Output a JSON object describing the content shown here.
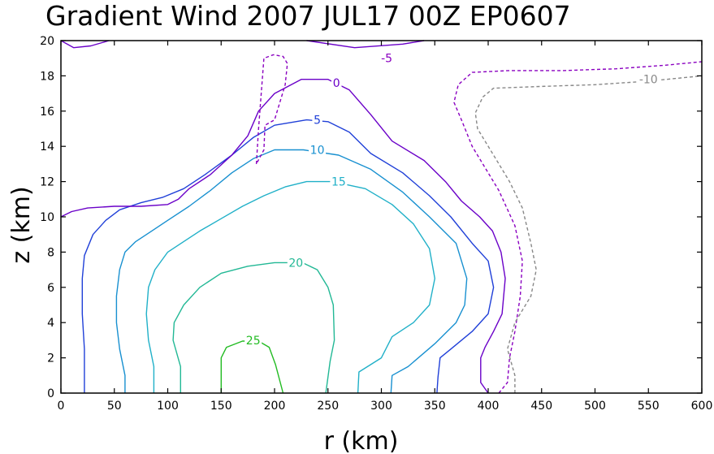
{
  "chart_data": {
    "type": "contour",
    "title": "Gradient Wind 2007 JUL17 00Z  EP0607",
    "xlabel": "r (km)",
    "ylabel": "z (km)",
    "xlim": [
      0,
      600
    ],
    "ylim": [
      0,
      20
    ],
    "xticks": [
      "0",
      "50",
      "100",
      "150",
      "200",
      "250",
      "300",
      "350",
      "400",
      "450",
      "500",
      "550",
      "600"
    ],
    "yticks": [
      "0",
      "2",
      "4",
      "6",
      "8",
      "10",
      "12",
      "14",
      "16",
      "18",
      "20"
    ],
    "contours": [
      {
        "level": 25,
        "label": "25",
        "color": "#22bb22",
        "dashed": false,
        "label_at": [
          180,
          3.0
        ],
        "lines": [
          [
            [
              150,
              0
            ],
            [
              150,
              2
            ],
            [
              155,
              2.6
            ],
            [
              170,
              2.95
            ],
            [
              185,
              2.95
            ],
            [
              195,
              2.6
            ],
            [
              201,
              1.6
            ],
            [
              208,
              0
            ]
          ]
        ]
      },
      {
        "level": 20,
        "label": "20",
        "color": "#22b895",
        "dashed": false,
        "label_at": [
          220,
          7.4
        ],
        "lines": [
          [
            [
              112,
              0
            ],
            [
              112,
              1.5
            ],
            [
              105,
              3
            ],
            [
              106,
              4
            ],
            [
              115,
              5
            ],
            [
              130,
              6
            ],
            [
              150,
              6.8
            ],
            [
              175,
              7.2
            ],
            [
              200,
              7.4
            ],
            [
              226,
              7.4
            ],
            [
              240,
              7.0
            ],
            [
              250,
              6.0
            ],
            [
              255,
              5.0
            ],
            [
              256,
              3.0
            ],
            [
              252,
              1.8
            ],
            [
              248,
              0
            ]
          ]
        ]
      },
      {
        "level": 15,
        "label": "15",
        "color": "#20b0c8",
        "dashed": false,
        "label_at": [
          260,
          12.0
        ],
        "lines": [
          [
            [
              87,
              0
            ],
            [
              87,
              1.5
            ],
            [
              82,
              3.0
            ],
            [
              80,
              4.5
            ],
            [
              82,
              6.0
            ],
            [
              88,
              7.0
            ],
            [
              100,
              8.0
            ],
            [
              115,
              8.6
            ],
            [
              130,
              9.2
            ],
            [
              150,
              9.9
            ],
            [
              170,
              10.6
            ],
            [
              190,
              11.2
            ],
            [
              210,
              11.7
            ],
            [
              230,
              12.0
            ],
            [
              254,
              12.0
            ],
            [
              285,
              11.6
            ],
            [
              310,
              10.7
            ],
            [
              330,
              9.6
            ],
            [
              345,
              8.2
            ],
            [
              350,
              6.5
            ],
            [
              345,
              5.0
            ],
            [
              330,
              4.0
            ],
            [
              310,
              3.2
            ],
            [
              300,
              2.0
            ],
            [
              279,
              1.2
            ],
            [
              278,
              0
            ]
          ]
        ]
      },
      {
        "level": 10,
        "label": "10",
        "color": "#1890d0",
        "dashed": false,
        "label_at": [
          240,
          13.8
        ],
        "lines": [
          [
            [
              60,
              0
            ],
            [
              60,
              1.0
            ],
            [
              55,
              2.5
            ],
            [
              52,
              4.0
            ],
            [
              52,
              5.5
            ],
            [
              55,
              7.0
            ],
            [
              60,
              8.0
            ],
            [
              70,
              8.6
            ],
            [
              85,
              9.2
            ],
            [
              100,
              9.8
            ],
            [
              120,
              10.6
            ],
            [
              140,
              11.5
            ],
            [
              160,
              12.5
            ],
            [
              180,
              13.3
            ],
            [
              200,
              13.8
            ],
            [
              227,
              13.8
            ],
            [
              260,
              13.5
            ],
            [
              290,
              12.7
            ],
            [
              320,
              11.4
            ],
            [
              345,
              10.0
            ],
            [
              370,
              8.5
            ],
            [
              380,
              6.5
            ],
            [
              378,
              5.0
            ],
            [
              370,
              4.0
            ],
            [
              350,
              2.8
            ],
            [
              325,
              1.5
            ],
            [
              310,
              1.0
            ],
            [
              309,
              0
            ]
          ]
        ]
      },
      {
        "level": 5,
        "label": "5",
        "color": "#2040d8",
        "dashed": false,
        "label_at": [
          240,
          15.5
        ],
        "lines": [
          [
            [
              22,
              0
            ],
            [
              22,
              2.5
            ],
            [
              20,
              4.5
            ],
            [
              20,
              6.5
            ],
            [
              22,
              7.8
            ],
            [
              30,
              9.0
            ],
            [
              42,
              9.8
            ],
            [
              55,
              10.4
            ],
            [
              75,
              10.8
            ],
            [
              95,
              11.1
            ],
            [
              115,
              11.6
            ],
            [
              135,
              12.4
            ],
            [
              160,
              13.5
            ],
            [
              180,
              14.5
            ],
            [
              200,
              15.2
            ],
            [
              230,
              15.5
            ],
            [
              250,
              15.4
            ],
            [
              270,
              14.8
            ],
            [
              290,
              13.6
            ],
            [
              320,
              12.5
            ],
            [
              345,
              11.2
            ],
            [
              365,
              10.0
            ],
            [
              385,
              8.5
            ],
            [
              400,
              7.5
            ],
            [
              405,
              6.0
            ],
            [
              400,
              4.5
            ],
            [
              385,
              3.5
            ],
            [
              365,
              2.5
            ],
            [
              355,
              2.0
            ],
            [
              353,
              0.9
            ],
            [
              352,
              0
            ]
          ]
        ]
      },
      {
        "level": 0,
        "label": "0",
        "color": "#6a00c8",
        "dashed": false,
        "label_at": [
          258,
          17.6
        ],
        "lines": [
          [
            [
              0,
              10.0
            ],
            [
              10,
              10.3
            ],
            [
              25,
              10.5
            ],
            [
              50,
              10.6
            ],
            [
              75,
              10.6
            ],
            [
              100,
              10.7
            ],
            [
              110,
              11.0
            ],
            [
              120,
              11.6
            ],
            [
              140,
              12.4
            ],
            [
              160,
              13.5
            ],
            [
              175,
              14.6
            ],
            [
              185,
              16.0
            ],
            [
              200,
              17.0
            ],
            [
              225,
              17.8
            ],
            [
              250,
              17.8
            ],
            [
              270,
              17.2
            ],
            [
              290,
              15.8
            ],
            [
              310,
              14.3
            ],
            [
              340,
              13.2
            ],
            [
              360,
              12.0
            ],
            [
              375,
              10.9
            ],
            [
              392,
              10.0
            ],
            [
              404,
              9.2
            ],
            [
              412,
              8.0
            ],
            [
              416,
              6.5
            ],
            [
              413,
              4.5
            ],
            [
              405,
              3.5
            ],
            [
              397,
              2.6
            ],
            [
              393,
              2.0
            ],
            [
              393,
              0.6
            ],
            [
              400,
              0
            ]
          ],
          [
            [
              0,
              20
            ],
            [
              12,
              19.6
            ],
            [
              28,
              19.7
            ],
            [
              45,
              20
            ]
          ],
          [
            [
              230,
              20
            ],
            [
              275,
              19.6
            ],
            [
              320,
              19.8
            ],
            [
              340,
              20
            ]
          ]
        ]
      },
      {
        "level": -5,
        "label": "-5",
        "color": "#8a00c0",
        "dashed": true,
        "label_at": [
          305,
          19.0
        ],
        "lines": [
          [
            [
              183,
              13.0
            ],
            [
              185,
              15.0
            ],
            [
              190,
              19.0
            ],
            [
              199,
              19.2
            ],
            [
              208,
              19.1
            ],
            [
              212,
              18.7
            ],
            [
              210,
              17.5
            ],
            [
              200,
              15.5
            ],
            [
              191,
              15.2
            ],
            [
              190,
              13.8
            ],
            [
              183,
              13.0
            ]
          ],
          [
            [
              410,
              0
            ],
            [
              418,
              0.6
            ],
            [
              420,
              2.0
            ],
            [
              425,
              3.5
            ],
            [
              430,
              5.5
            ],
            [
              432,
              7.5
            ],
            [
              425,
              9.5
            ],
            [
              410,
              11.5
            ],
            [
              395,
              13.0
            ],
            [
              385,
              14.0
            ],
            [
              375,
              15.5
            ],
            [
              368,
              16.5
            ],
            [
              372,
              17.5
            ],
            [
              385,
              18.2
            ],
            [
              420,
              18.3
            ],
            [
              470,
              18.3
            ],
            [
              520,
              18.4
            ],
            [
              565,
              18.6
            ],
            [
              600,
              18.8
            ]
          ]
        ]
      },
      {
        "level": -10,
        "label": "-10",
        "color": "#888888",
        "dashed": true,
        "label_at": [
          550,
          17.8
        ],
        "lines": [
          [
            [
              425,
              0
            ],
            [
              425,
              1.0
            ],
            [
              418,
              2.5
            ],
            [
              425,
              4.0
            ],
            [
              440,
              5.5
            ],
            [
              445,
              7.0
            ],
            [
              440,
              8.5
            ],
            [
              432,
              10.5
            ],
            [
              420,
              12.0
            ],
            [
              405,
              13.5
            ],
            [
              390,
              15.0
            ],
            [
              388,
              15.9
            ],
            [
              395,
              16.8
            ],
            [
              405,
              17.3
            ],
            [
              450,
              17.4
            ],
            [
              500,
              17.5
            ],
            [
              550,
              17.7
            ],
            [
              600,
              18.0
            ]
          ]
        ]
      }
    ]
  }
}
